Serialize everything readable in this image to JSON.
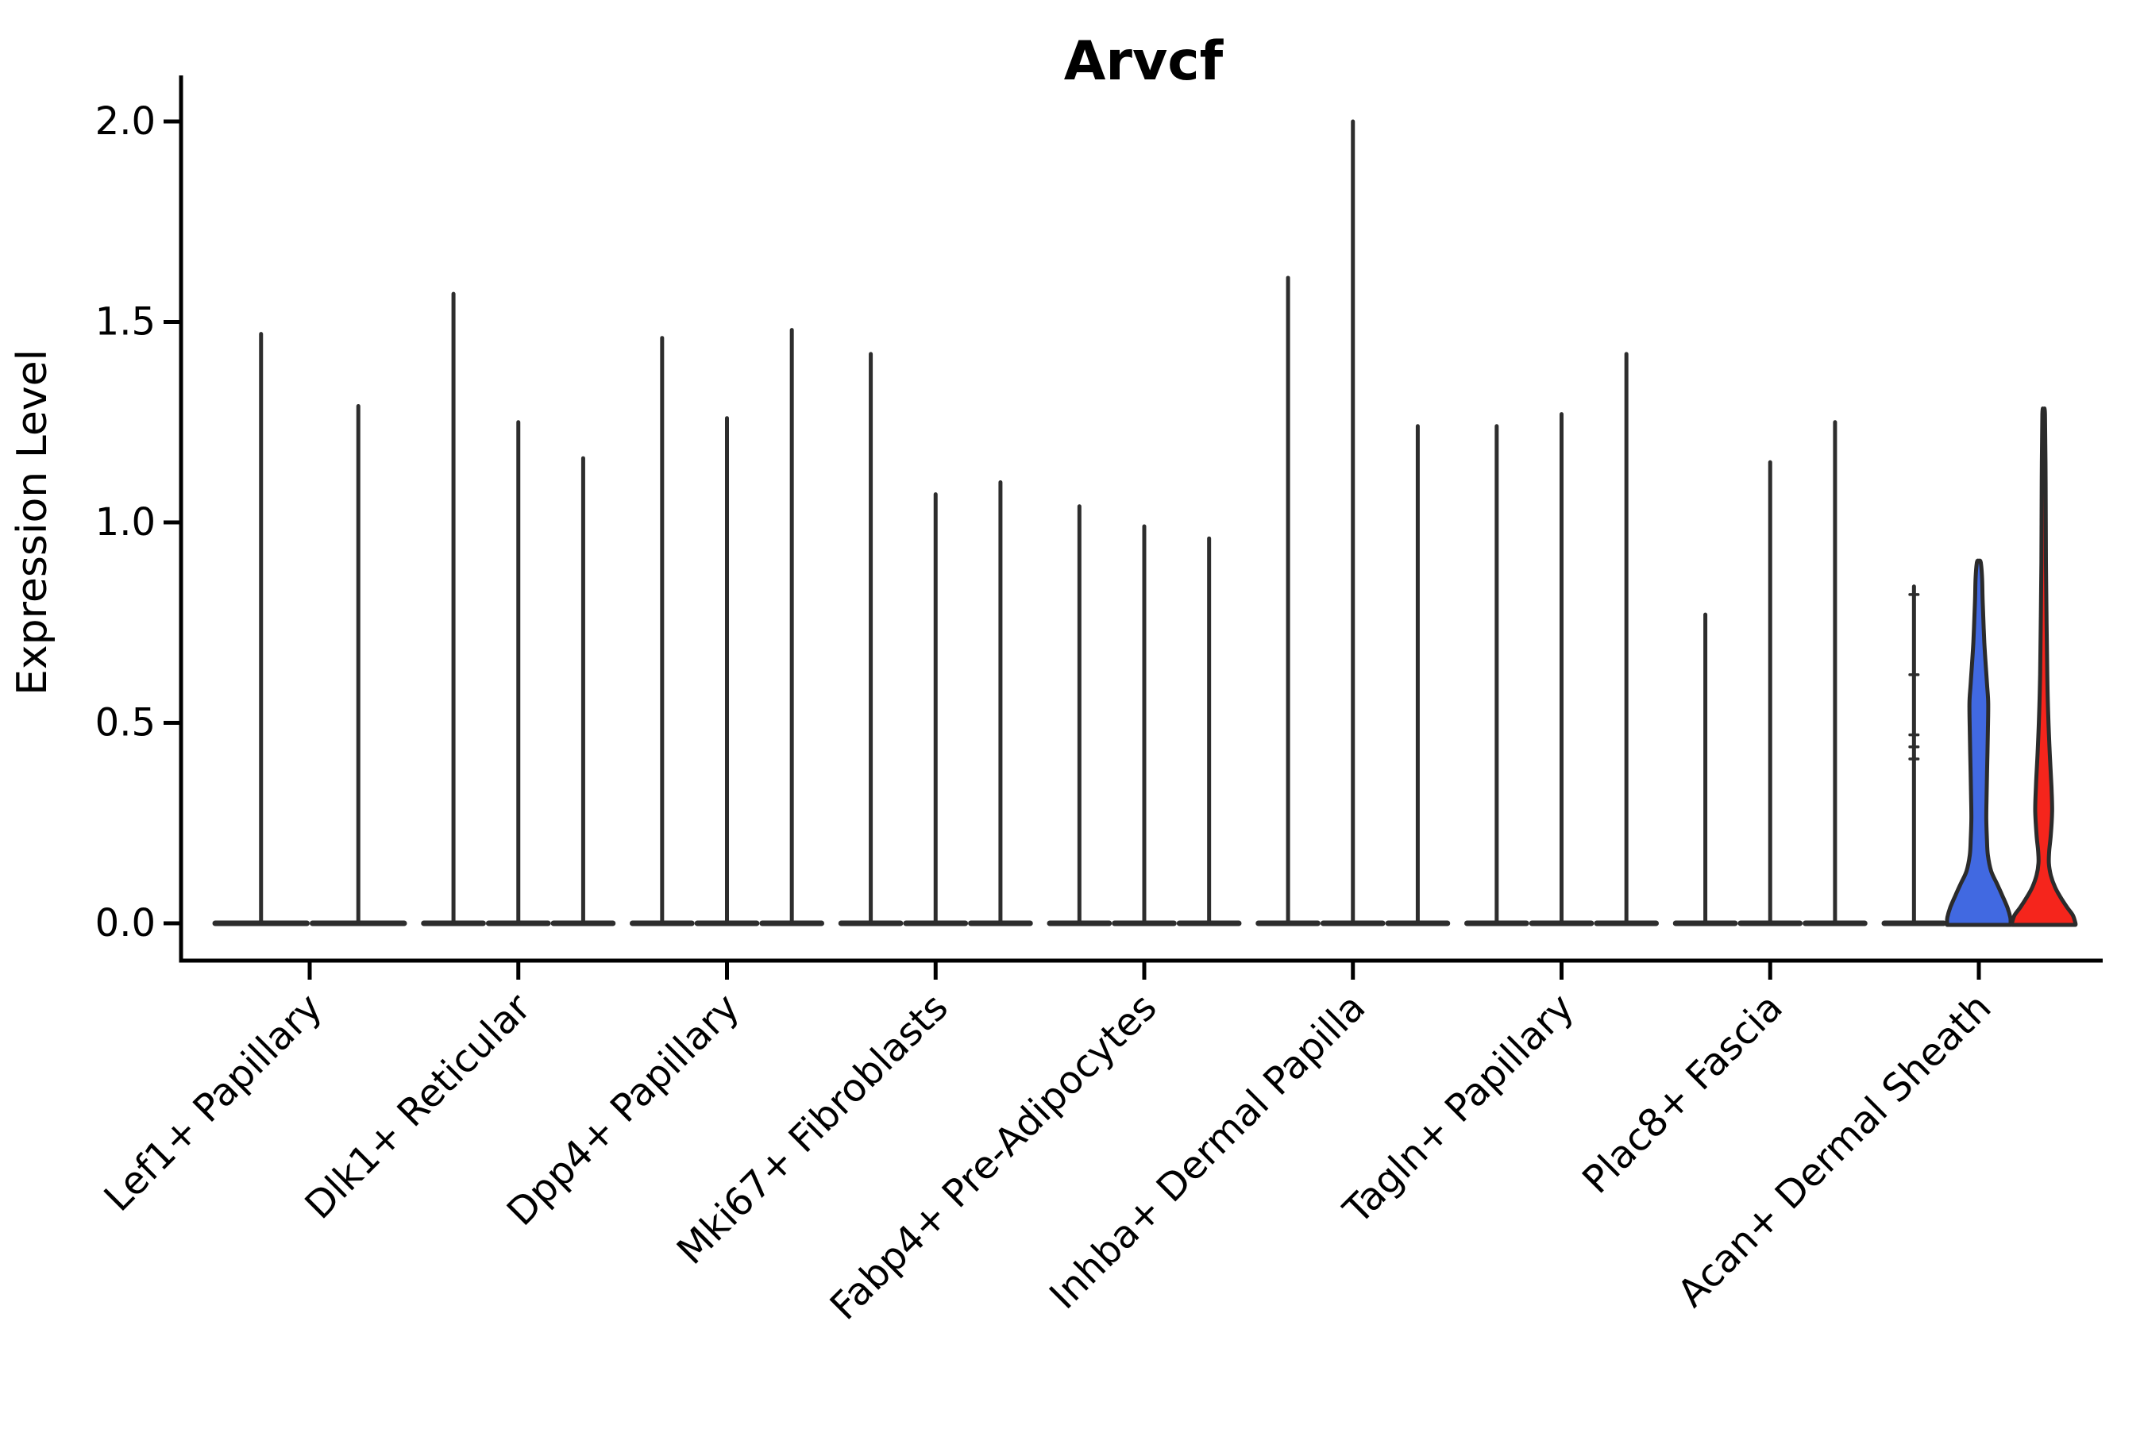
{
  "chart_data": {
    "type": "violin",
    "title": "Arvcf",
    "xlabel": "",
    "ylabel": "Expression Level",
    "ylim": [
      0,
      2.05
    ],
    "grid": false,
    "legend": "none",
    "ytick_values": [
      0.0,
      0.5,
      1.0,
      1.5,
      2.0
    ],
    "ytick_labels": [
      "0.0",
      "0.5",
      "1.0",
      "1.5",
      "2.0"
    ],
    "categories": [
      "Lef1+ Papillary",
      "Dlk1+ Reticular",
      "Dpp4+ Papillary",
      "Mki67+ Fibroblasts",
      "Fabp4+ Pre-Adipocytes",
      "Inhba+ Dermal Papilla",
      "Tagln+ Papillary",
      "Plac8+ Fascia",
      "Acan+ Dermal Sheath"
    ],
    "groups": [
      {
        "category": "Lef1+ Papillary",
        "violins": [
          {
            "max": 1.47
          },
          {
            "max": 1.29
          }
        ]
      },
      {
        "category": "Dlk1+ Reticular",
        "violins": [
          {
            "max": 1.57
          },
          {
            "max": 1.25
          },
          {
            "max": 1.16
          }
        ]
      },
      {
        "category": "Dpp4+ Papillary",
        "violins": [
          {
            "max": 1.46
          },
          {
            "max": 1.26
          },
          {
            "max": 1.48
          }
        ]
      },
      {
        "category": "Mki67+ Fibroblasts",
        "violins": [
          {
            "max": 1.42
          },
          {
            "max": 1.07
          },
          {
            "max": 1.1
          }
        ]
      },
      {
        "category": "Fabp4+ Pre-Adipocytes",
        "violins": [
          {
            "max": 1.04
          },
          {
            "max": 0.99
          },
          {
            "max": 0.96
          }
        ]
      },
      {
        "category": "Inhba+ Dermal Papilla",
        "violins": [
          {
            "max": 1.61
          },
          {
            "max": 2.0
          },
          {
            "max": 1.24
          }
        ]
      },
      {
        "category": "Tagln+ Papillary",
        "violins": [
          {
            "max": 1.24
          },
          {
            "max": 1.27
          },
          {
            "max": 1.42
          }
        ]
      },
      {
        "category": "Plac8+ Fascia",
        "violins": [
          {
            "max": 0.77
          },
          {
            "max": 1.15
          },
          {
            "max": 1.25
          }
        ]
      },
      {
        "category": "Acan+ Dermal Sheath",
        "violins": [
          {
            "max": 0.84,
            "marks": [
              0.82,
              0.62,
              0.47,
              0.44,
              0.41
            ]
          },
          {
            "max": 0.9,
            "shape": "blue"
          },
          {
            "max": 1.27,
            "shape": "red"
          }
        ]
      }
    ],
    "violin_shapes": {
      "blue": {
        "fill": "#4169E1",
        "profile": [
          [
            0.0,
            0.98
          ],
          [
            0.015,
            0.97
          ],
          [
            0.04,
            0.88
          ],
          [
            0.07,
            0.72
          ],
          [
            0.1,
            0.55
          ],
          [
            0.13,
            0.38
          ],
          [
            0.17,
            0.28
          ],
          [
            0.21,
            0.25
          ],
          [
            0.26,
            0.23
          ],
          [
            0.32,
            0.24
          ],
          [
            0.4,
            0.26
          ],
          [
            0.48,
            0.28
          ],
          [
            0.55,
            0.29
          ],
          [
            0.6,
            0.25
          ],
          [
            0.7,
            0.17
          ],
          [
            0.8,
            0.12
          ],
          [
            0.86,
            0.1
          ],
          [
            0.9,
            0.06
          ]
        ]
      },
      "red": {
        "fill": "#F5251C",
        "profile": [
          [
            0.0,
            0.98
          ],
          [
            0.02,
            0.9
          ],
          [
            0.04,
            0.72
          ],
          [
            0.065,
            0.52
          ],
          [
            0.09,
            0.35
          ],
          [
            0.12,
            0.22
          ],
          [
            0.15,
            0.16
          ],
          [
            0.18,
            0.17
          ],
          [
            0.22,
            0.22
          ],
          [
            0.28,
            0.26
          ],
          [
            0.34,
            0.24
          ],
          [
            0.42,
            0.19
          ],
          [
            0.52,
            0.14
          ],
          [
            0.62,
            0.11
          ],
          [
            0.75,
            0.09
          ],
          [
            0.9,
            0.07
          ],
          [
            1.1,
            0.06
          ],
          [
            1.27,
            0.04
          ]
        ]
      }
    },
    "colors": {
      "thin_violin": "#2d2d2d",
      "violin_outline": "#2b2b2b",
      "axis": "#000000",
      "background": "#ffffff",
      "blue_fill": "#4169E1",
      "red_fill": "#F5251C"
    }
  }
}
